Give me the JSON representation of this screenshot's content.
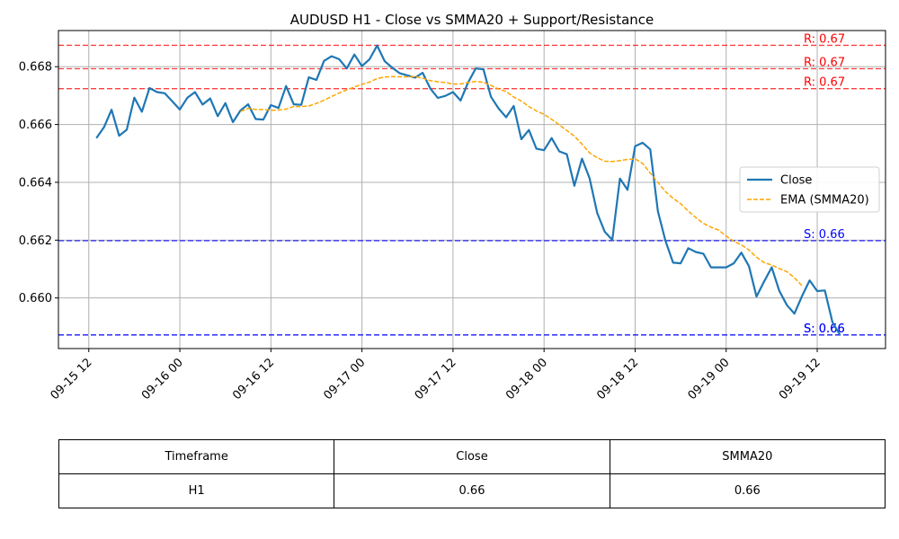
{
  "chart_data": {
    "type": "line",
    "title": "AUDUSD H1 - Close vs SMMA20 + Support/Resistance",
    "xlabel": "",
    "ylabel": "",
    "x_start": "2024-09-15 13:00",
    "x_end": "2024-09-19 17:00",
    "xlim": [
      "2024-09-15 08:00",
      "2024-09-19 21:00"
    ],
    "ylim": [
      0.65825,
      0.66925
    ],
    "x_tick_labels": [
      "09-15 12",
      "09-16 00",
      "09-16 12",
      "09-17 00",
      "09-17 12",
      "09-18 00",
      "09-18 12",
      "09-19 00",
      "09-19 12"
    ],
    "y_tick_labels": [
      "0.660",
      "0.662",
      "0.664",
      "0.666",
      "0.668"
    ],
    "y_ticks": [
      0.66,
      0.662,
      0.664,
      0.666,
      0.668
    ],
    "grid": true,
    "legend_position": "center-right",
    "series": [
      {
        "name": "Close",
        "color": "#1f77b4",
        "style": "solid",
        "values": [
          0.66553,
          0.6659,
          0.66651,
          0.66561,
          0.66582,
          0.66693,
          0.66644,
          0.66726,
          0.66712,
          0.66708,
          0.6668,
          0.66652,
          0.66693,
          0.66712,
          0.66669,
          0.6669,
          0.66629,
          0.66674,
          0.66608,
          0.66649,
          0.6667,
          0.66619,
          0.66617,
          0.66667,
          0.66657,
          0.66733,
          0.6667,
          0.66668,
          0.66763,
          0.66754,
          0.6682,
          0.66836,
          0.66826,
          0.66794,
          0.66842,
          0.66802,
          0.66826,
          0.66873,
          0.66819,
          0.66796,
          0.66777,
          0.6677,
          0.66762,
          0.66779,
          0.66725,
          0.66692,
          0.66699,
          0.66712,
          0.66683,
          0.66746,
          0.66794,
          0.66791,
          0.66696,
          0.66656,
          0.66625,
          0.66664,
          0.66549,
          0.66581,
          0.66516,
          0.66511,
          0.66553,
          0.66507,
          0.66497,
          0.66388,
          0.66482,
          0.66414,
          0.66294,
          0.66229,
          0.66201,
          0.66413,
          0.66374,
          0.66525,
          0.66537,
          0.66514,
          0.663,
          0.66198,
          0.66122,
          0.6612,
          0.66172,
          0.66159,
          0.66153,
          0.66106,
          0.66106,
          0.66106,
          0.6612,
          0.66157,
          0.6611,
          0.66005,
          0.66057,
          0.66106,
          0.66025,
          0.65975,
          0.65946,
          0.66007,
          0.66061,
          0.66024,
          0.66026,
          0.65917,
          0.65872
        ]
      },
      {
        "name": "EMA (SMMA20)",
        "color": "#ffa500",
        "style": "dashed",
        "x_offset_hours": 19,
        "values": [
          0.66645,
          0.66656,
          0.66652,
          0.66652,
          0.66649,
          0.6665,
          0.66653,
          0.66662,
          0.66662,
          0.66664,
          0.66673,
          0.66684,
          0.66697,
          0.66709,
          0.6672,
          0.6673,
          0.66739,
          0.66747,
          0.66759,
          0.66764,
          0.66766,
          0.66765,
          0.66765,
          0.66766,
          0.6676,
          0.66752,
          0.66748,
          0.66745,
          0.6674,
          0.6674,
          0.66745,
          0.66749,
          0.66746,
          0.66735,
          0.66723,
          0.66714,
          0.66695,
          0.66681,
          0.66662,
          0.66647,
          0.66635,
          0.66618,
          0.66599,
          0.66579,
          0.6656,
          0.66532,
          0.66502,
          0.66485,
          0.66473,
          0.66472,
          0.66475,
          0.66479,
          0.66481,
          0.66465,
          0.66432,
          0.664,
          0.66368,
          0.66345,
          0.66326,
          0.66301,
          0.66278,
          0.66258,
          0.66245,
          0.66235,
          0.66214,
          0.66196,
          0.66184,
          0.66166,
          0.66141,
          0.66122,
          0.66114,
          0.66102,
          0.66091,
          0.6607,
          0.66042
        ]
      }
    ],
    "levels": [
      {
        "kind": "resistance",
        "value": 0.66874,
        "label": "R: 0.67",
        "color": "#ff0000"
      },
      {
        "kind": "resistance",
        "value": 0.66793,
        "label": "R: 0.67",
        "color": "#ff0000"
      },
      {
        "kind": "resistance",
        "value": 0.66724,
        "label": "R: 0.67",
        "color": "#ff0000"
      },
      {
        "kind": "support",
        "value": 0.66198,
        "label": "S: 0.66",
        "color": "#0000ff"
      },
      {
        "kind": "support",
        "value": 0.65872,
        "label": "S: 0.66",
        "color": "#0000ff"
      },
      {
        "kind": "support",
        "value": 0.65872,
        "label": "S: 0.66",
        "color": "#0000ff"
      }
    ]
  },
  "table": {
    "headers": [
      "Timeframe",
      "Close",
      "SMMA20"
    ],
    "rows": [
      [
        "H1",
        "0.66",
        "0.66"
      ]
    ]
  }
}
